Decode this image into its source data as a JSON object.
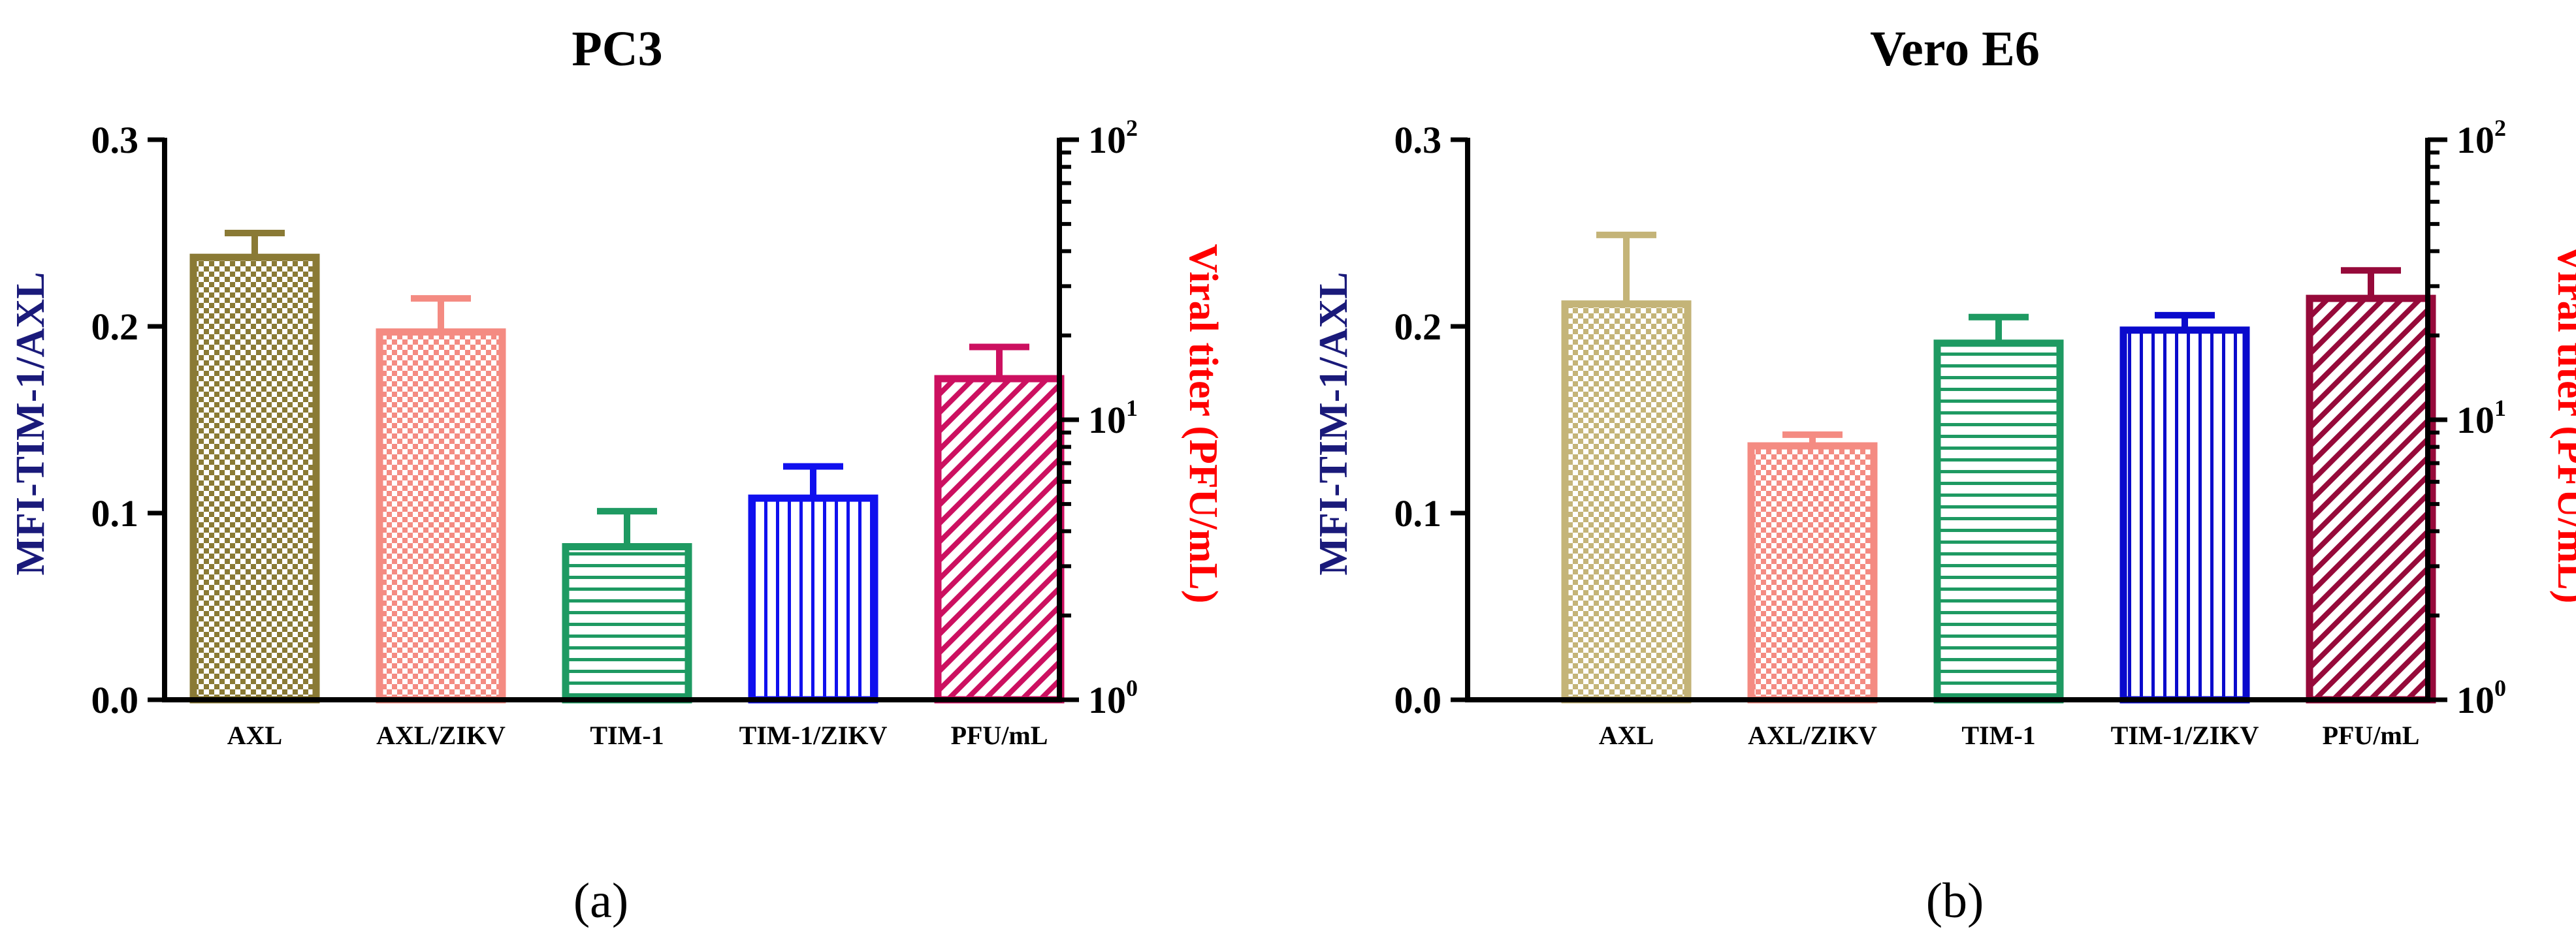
{
  "chart_data": [
    {
      "type": "bar",
      "panel_label": "(a)",
      "title": "PC3",
      "categories": [
        "AXL",
        "AXL/ZIKV",
        "TIM-1",
        "TIM-1/ZIKV",
        "PFU/mL"
      ],
      "values": [
        0.237,
        0.197,
        0.082,
        0.108,
        0.172
      ],
      "errors": [
        0.013,
        0.018,
        0.019,
        0.017,
        0.017
      ],
      "bar_colors": [
        "#8a7a35",
        "#f48b82",
        "#1e9a62",
        "#1010ee",
        "#cc1060"
      ],
      "patterns": [
        "checker",
        "checker",
        "horizontal",
        "vertical",
        "diagonal"
      ],
      "ylabel": "MFI-TIM-1/AXL",
      "ylabel_color": "#1a1a7a",
      "ylim": [
        0,
        0.3
      ],
      "yticks": [
        "0.0",
        "0.1",
        "0.2",
        "0.3"
      ],
      "y2label": "Viral titer (PFU/mL)",
      "y2label_color": "#ff0000",
      "y2_scale": "log",
      "y2lim": [
        1,
        100
      ],
      "y2ticks": [
        {
          "base": "10",
          "exp": "0"
        },
        {
          "base": "10",
          "exp": "1"
        },
        {
          "base": "10",
          "exp": "2"
        }
      ]
    },
    {
      "type": "bar",
      "panel_label": "(b)",
      "title": "Vero E6",
      "categories": [
        "AXL",
        "AXL/ZIKV",
        "TIM-1",
        "TIM-1/ZIKV",
        "PFU/mL"
      ],
      "values": [
        0.212,
        0.136,
        0.191,
        0.198,
        0.215
      ],
      "errors": [
        0.037,
        0.006,
        0.014,
        0.008,
        0.015
      ],
      "bar_colors": [
        "#c4b478",
        "#f48b82",
        "#1e9a62",
        "#0a0acc",
        "#960a3a"
      ],
      "patterns": [
        "checker",
        "checker",
        "horizontal",
        "vertical",
        "diagonal"
      ],
      "ylabel": "MFI-TIM-1/AXL",
      "ylabel_color": "#1a1a7a",
      "ylim": [
        0,
        0.3
      ],
      "yticks": [
        "0.0",
        "0.1",
        "0.2",
        "0.3"
      ],
      "y2label": "Viral titer (PFU/mL)",
      "y2label_color": "#ff0000",
      "y2_scale": "log",
      "y2lim": [
        1,
        100
      ],
      "y2ticks": [
        {
          "base": "10",
          "exp": "0"
        },
        {
          "base": "10",
          "exp": "1"
        },
        {
          "base": "10",
          "exp": "2"
        }
      ]
    }
  ]
}
